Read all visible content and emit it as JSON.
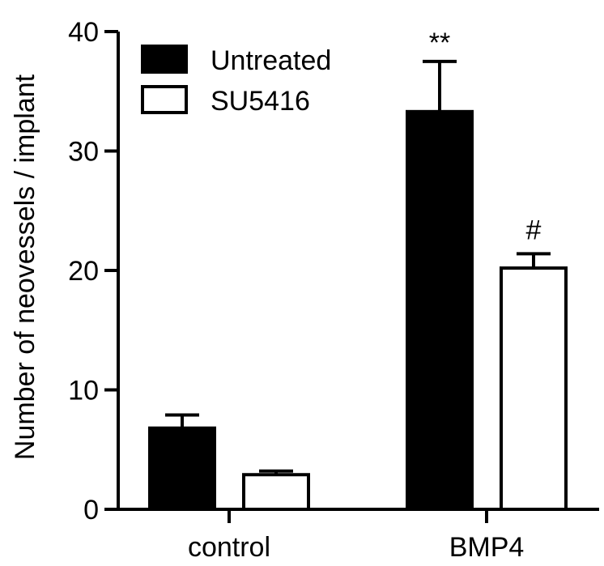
{
  "chart_data": {
    "type": "bar",
    "title": "",
    "xlabel": "",
    "ylabel": "Number of neovessels / implant",
    "ylim": [
      0,
      40
    ],
    "yticks": [
      0,
      10,
      20,
      30,
      40
    ],
    "categories": [
      "control",
      "BMP4"
    ],
    "series": [
      {
        "name": "Untreated",
        "values": [
          6.8,
          33.3
        ],
        "errors": [
          1.1,
          4.2
        ],
        "fill": "#000000",
        "annotations": [
          "",
          "**"
        ]
      },
      {
        "name": "SU5416",
        "values": [
          2.9,
          20.2
        ],
        "errors": [
          0.3,
          1.2
        ],
        "fill": "#ffffff",
        "annotations": [
          "",
          "#"
        ]
      }
    ],
    "legend_position": "top-left",
    "grid": false
  }
}
